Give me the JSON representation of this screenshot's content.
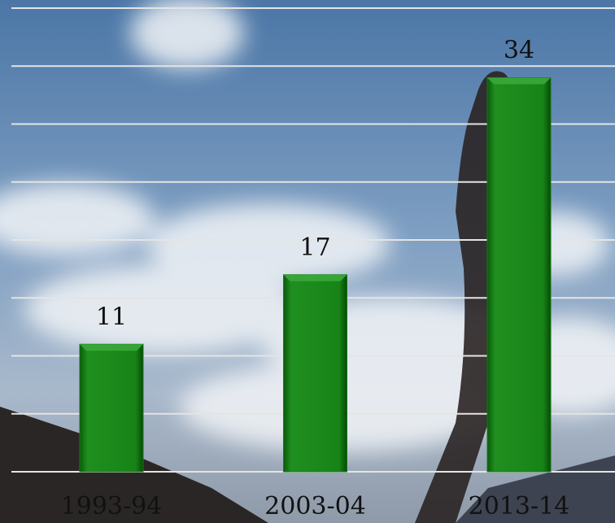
{
  "chart_data": {
    "type": "bar",
    "categories": [
      "1993-94",
      "2003-04",
      "2013-14"
    ],
    "values": [
      11,
      17,
      34
    ],
    "color": "#137a13",
    "ylim": [
      0,
      40
    ],
    "yticks": [
      0,
      5,
      10,
      15,
      20,
      25,
      30,
      35,
      40
    ],
    "grid": true
  }
}
